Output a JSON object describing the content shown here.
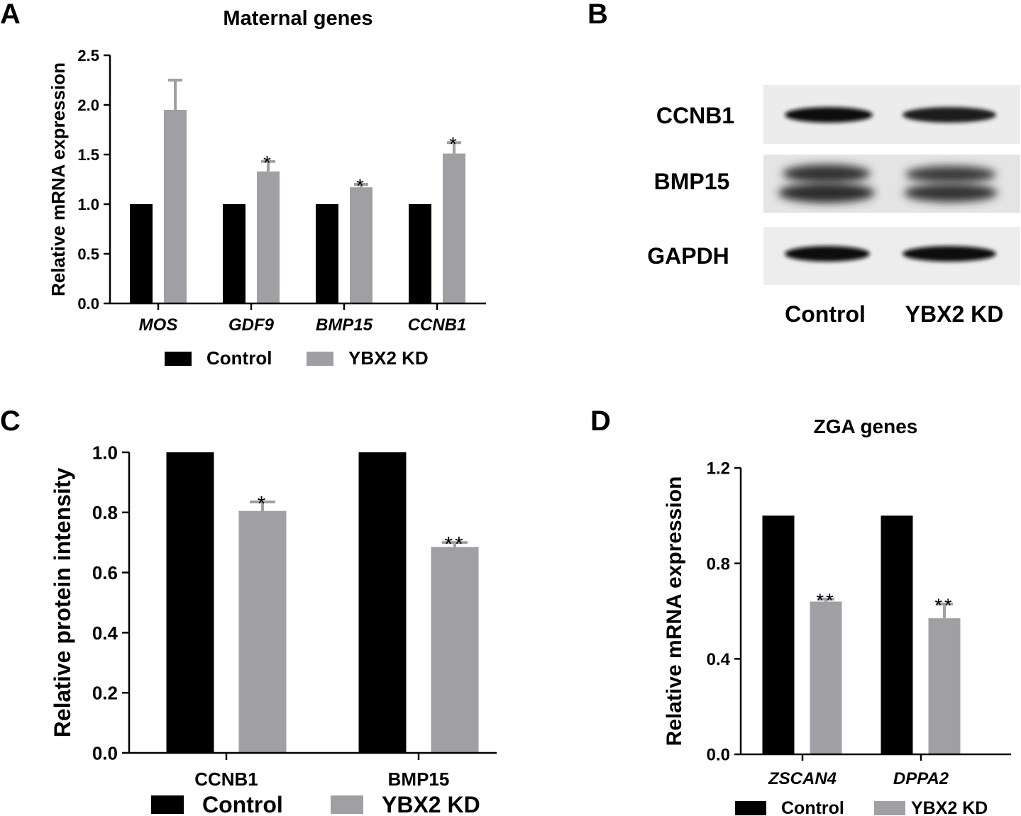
{
  "colors": {
    "control": "#000000",
    "ybx2kd": "#a0a0a4",
    "axis": "#000000",
    "background": "#ffffff"
  },
  "panels": {
    "a": "A",
    "b": "B",
    "c": "C",
    "d": "D"
  },
  "chart_data": [
    {
      "id": "A",
      "type": "bar",
      "title": "Maternal genes",
      "xlabel": "",
      "ylabel": "Relative mRNA expression",
      "ylim": [
        0,
        2.5
      ],
      "yticks": [
        "0.0",
        "0.5",
        "1.0",
        "1.5",
        "2.0",
        "2.5"
      ],
      "categories": [
        "MOS",
        "GDF9",
        "BMP15",
        "CCNB1"
      ],
      "categories_italic": true,
      "series": [
        {
          "name": "Control",
          "values": [
            1.0,
            1.0,
            1.0,
            1.0
          ],
          "errors": [
            0,
            0,
            0,
            0
          ]
        },
        {
          "name": "YBX2 KD",
          "values": [
            1.95,
            1.33,
            1.17,
            1.51
          ],
          "errors": [
            0.3,
            0.1,
            0.03,
            0.11
          ],
          "significance": [
            "",
            "*",
            "*",
            "*"
          ]
        }
      ],
      "legend": [
        "Control",
        "YBX2 KD"
      ],
      "legend_position": "bottom"
    },
    {
      "id": "C",
      "type": "bar",
      "title": "",
      "xlabel": "",
      "ylabel": "Relative protein intensity",
      "ylim": [
        0,
        1.0
      ],
      "yticks": [
        "0.0",
        "0.2",
        "0.4",
        "0.6",
        "0.8",
        "1.0"
      ],
      "categories": [
        "CCNB1",
        "BMP15"
      ],
      "categories_italic": false,
      "series": [
        {
          "name": "Control",
          "values": [
            1.0,
            1.0
          ],
          "errors": [
            0,
            0
          ]
        },
        {
          "name": "YBX2 KD",
          "values": [
            0.805,
            0.685
          ],
          "errors": [
            0.03,
            0.015
          ],
          "significance": [
            "*",
            "**"
          ]
        }
      ],
      "legend": [
        "Control",
        "YBX2 KD"
      ],
      "legend_position": "bottom"
    },
    {
      "id": "D",
      "type": "bar",
      "title": "ZGA genes",
      "xlabel": "",
      "ylabel": "Relative mRNA expression",
      "ylim": [
        0,
        1.2
      ],
      "yticks": [
        "0.0",
        "0.4",
        "0.8",
        "1.2"
      ],
      "categories": [
        "ZSCAN4",
        "DPPA2"
      ],
      "categories_italic": true,
      "series": [
        {
          "name": "Control",
          "values": [
            1.0,
            1.0
          ],
          "errors": [
            0,
            0
          ]
        },
        {
          "name": "YBX2 KD",
          "values": [
            0.64,
            0.57
          ],
          "errors": [
            0.01,
            0.06
          ],
          "significance": [
            "**",
            "**"
          ]
        }
      ],
      "legend": [
        "Control",
        "YBX2 KD"
      ],
      "legend_position": "bottom"
    }
  ],
  "western_blot": {
    "proteins": [
      "CCNB1",
      "BMP15",
      "GAPDH"
    ],
    "lanes": [
      "Control",
      "YBX2 KD"
    ]
  }
}
